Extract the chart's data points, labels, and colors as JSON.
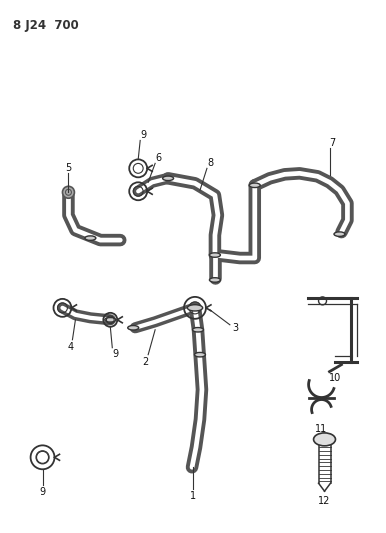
{
  "title": "8 J24  700",
  "background": "#ffffff",
  "line_color": "#333333",
  "figsize": [
    3.86,
    5.33
  ],
  "dpi": 100
}
